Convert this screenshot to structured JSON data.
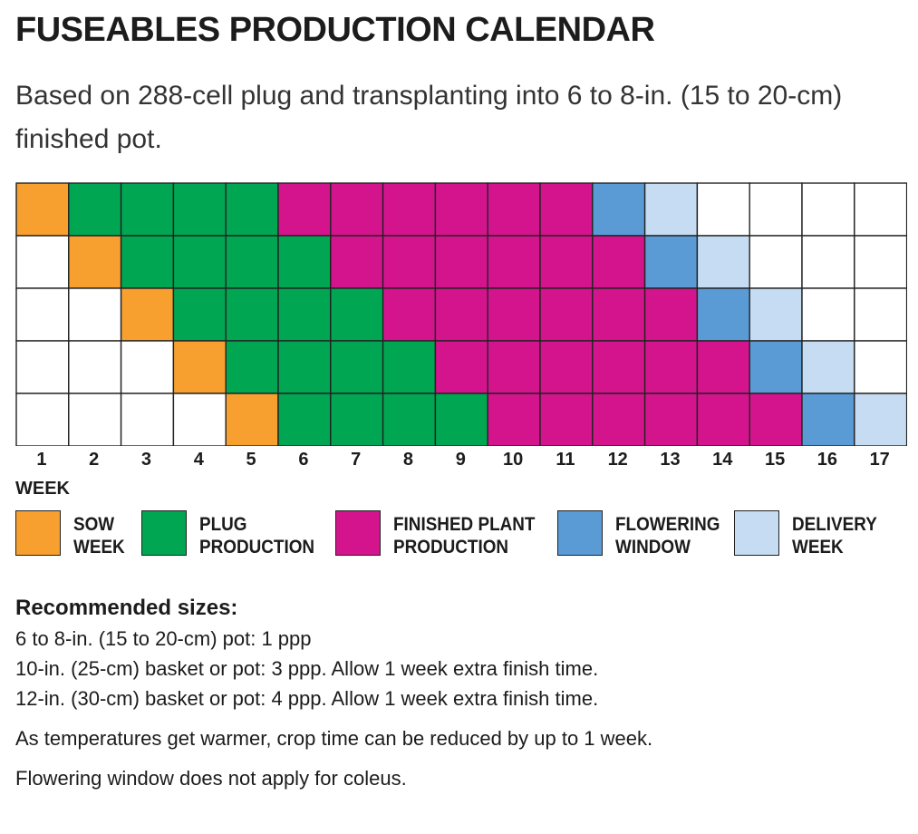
{
  "header": {
    "title": "FUSEABLES PRODUCTION CALENDAR",
    "subtitle": "Based on 288-cell plug and transplanting into 6 to 8-in. (15 to 20-cm) finished pot."
  },
  "chart_data": {
    "type": "table",
    "title": "FUSEABLES PRODUCTION CALENDAR",
    "xlabel": "WEEK",
    "weeks": [
      1,
      2,
      3,
      4,
      5,
      6,
      7,
      8,
      9,
      10,
      11,
      12,
      13,
      14,
      15,
      16,
      17
    ],
    "stage_order": [
      "sow",
      "plug",
      "finished",
      "flowering",
      "delivery"
    ],
    "stage_weeks": [
      1,
      4,
      6,
      1,
      1
    ],
    "rows": [
      {
        "sow_week": 1
      },
      {
        "sow_week": 2
      },
      {
        "sow_week": 3
      },
      {
        "sow_week": 4
      },
      {
        "sow_week": 5
      }
    ],
    "colors": {
      "empty": "#ffffff",
      "sow": "#f7a030",
      "plug": "#00a651",
      "finished": "#d4148d",
      "flowering": "#5b9bd5",
      "delivery": "#c5dcf2"
    },
    "legend": [
      {
        "key": "sow",
        "label": "SOW\nWEEK"
      },
      {
        "key": "plug",
        "label": "PLUG\nPRODUCTION"
      },
      {
        "key": "finished",
        "label": "FINISHED PLANT\nPRODUCTION"
      },
      {
        "key": "flowering",
        "label": "FLOWERING\nWINDOW"
      },
      {
        "key": "delivery",
        "label": "DELIVERY\nWEEK"
      }
    ]
  },
  "notes": {
    "heading": "Recommended sizes:",
    "sizes": [
      "6 to 8-in. (15 to 20-cm) pot: 1 ppp",
      "10-in. (25-cm) basket or pot: 3 ppp.  Allow 1 week extra finish time.",
      "12-in. (30-cm) basket or pot: 4 ppp.  Allow 1 week extra finish time."
    ],
    "temperature": "As temperatures get warmer, crop time can be reduced by up to 1 week.",
    "flowering": "Flowering window does not apply for coleus."
  }
}
